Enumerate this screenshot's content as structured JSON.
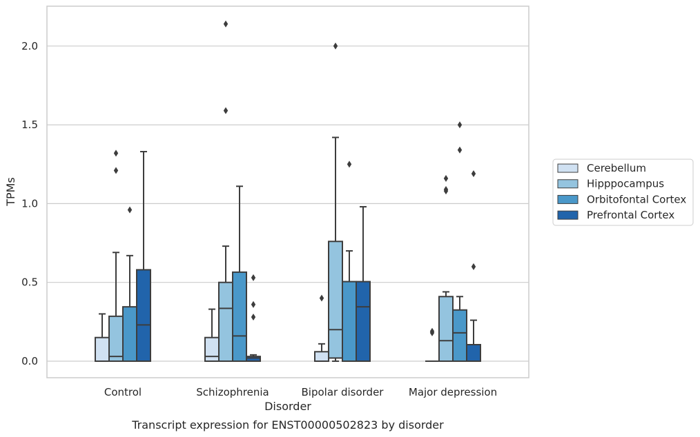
{
  "chart_data": {
    "type": "box",
    "categories": [
      "Control",
      "Schizophrenia",
      "Bipolar disorder",
      "Major depression"
    ],
    "xlabel": "Disorder",
    "ylabel": "TPMs",
    "caption": "Transcript expression for ENST00000502823 by disorder",
    "ylim": [
      -0.1,
      2.25
    ],
    "yticks": [
      {
        "value": 0.0,
        "label": "0.0"
      },
      {
        "value": 0.5,
        "label": "0.5"
      },
      {
        "value": 1.0,
        "label": "1.0"
      },
      {
        "value": 1.5,
        "label": "1.5"
      },
      {
        "value": 2.0,
        "label": "2.0"
      }
    ],
    "grid": "horizontal",
    "legend_position": "right",
    "series": [
      {
        "name": "Cerebellum",
        "color": "#d0e1f2",
        "boxes": [
          {
            "q1": 0.0,
            "median": 0.0,
            "q3": 0.15,
            "whislo": 0.0,
            "whishi": 0.3,
            "fliers": []
          },
          {
            "q1": 0.0,
            "median": 0.03,
            "q3": 0.15,
            "whislo": 0.0,
            "whishi": 0.33,
            "fliers": []
          },
          {
            "q1": 0.0,
            "median": 0.0,
            "q3": 0.06,
            "whislo": 0.0,
            "whishi": 0.11,
            "fliers": [
              0.4
            ]
          },
          {
            "q1": 0.0,
            "median": 0.0,
            "q3": 0.0,
            "whislo": 0.0,
            "whishi": 0.0,
            "fliers": [
              0.18,
              0.19
            ]
          }
        ]
      },
      {
        "name": "Hipppocampus",
        "color": "#94c4df",
        "boxes": [
          {
            "q1": 0.0,
            "median": 0.03,
            "q3": 0.285,
            "whislo": 0.0,
            "whishi": 0.69,
            "fliers": [
              1.21,
              1.32
            ]
          },
          {
            "q1": 0.0,
            "median": 0.335,
            "q3": 0.5,
            "whislo": 0.0,
            "whishi": 0.73,
            "fliers": [
              1.59,
              2.14
            ]
          },
          {
            "q1": 0.02,
            "median": 0.2,
            "q3": 0.76,
            "whislo": 0.0,
            "whishi": 1.42,
            "fliers": [
              2.0
            ]
          },
          {
            "q1": 0.0,
            "median": 0.13,
            "q3": 0.41,
            "whislo": 0.0,
            "whishi": 0.44,
            "fliers": [
              1.08,
              1.09,
              1.16
            ]
          }
        ]
      },
      {
        "name": "Orbitofontal Cortex",
        "color": "#4a98c9",
        "boxes": [
          {
            "q1": 0.0,
            "median": 0.0,
            "q3": 0.345,
            "whislo": 0.0,
            "whishi": 0.67,
            "fliers": [
              0.96
            ]
          },
          {
            "q1": 0.0,
            "median": 0.16,
            "q3": 0.565,
            "whislo": 0.0,
            "whishi": 1.11,
            "fliers": []
          },
          {
            "q1": 0.0,
            "median": 0.0,
            "q3": 0.505,
            "whislo": 0.0,
            "whishi": 0.7,
            "fliers": [
              1.25
            ]
          },
          {
            "q1": 0.0,
            "median": 0.18,
            "q3": 0.325,
            "whislo": 0.0,
            "whishi": 0.41,
            "fliers": [
              1.34,
              1.5
            ]
          }
        ]
      },
      {
        "name": "Prefrontal Cortex",
        "color": "#2164ab",
        "boxes": [
          {
            "q1": 0.0,
            "median": 0.23,
            "q3": 0.58,
            "whislo": 0.0,
            "whishi": 1.33,
            "fliers": []
          },
          {
            "q1": 0.0,
            "median": 0.02,
            "q3": 0.03,
            "whislo": 0.0,
            "whishi": 0.04,
            "fliers": [
              0.28,
              0.36,
              0.53
            ]
          },
          {
            "q1": 0.0,
            "median": 0.345,
            "q3": 0.505,
            "whislo": 0.0,
            "whishi": 0.98,
            "fliers": []
          },
          {
            "q1": 0.0,
            "median": 0.0,
            "q3": 0.105,
            "whislo": 0.0,
            "whishi": 0.26,
            "fliers": [
              0.6,
              1.19
            ]
          }
        ]
      }
    ]
  }
}
